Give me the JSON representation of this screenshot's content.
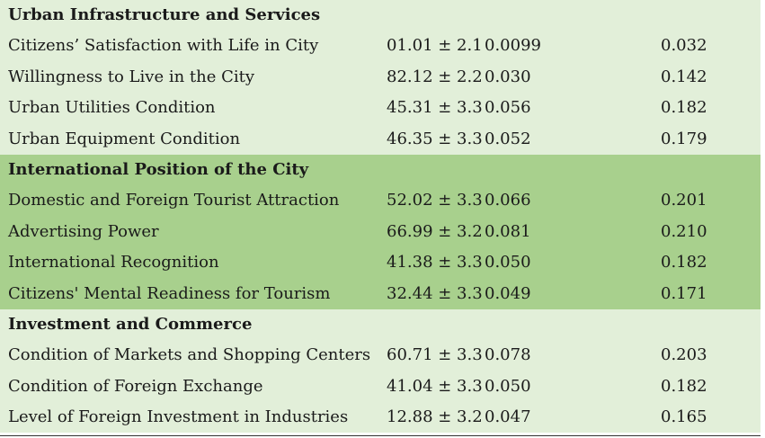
{
  "sections": [
    {
      "title": "Urban Infrastructure and Services",
      "rows": [
        {
          "label": "Citizens’ Satisfaction with Life in City",
          "mean": "01.01 ± 2.1",
          "w1": "0.0099",
          "w2": "0.032"
        },
        {
          "label": "Willingness to Live in the City",
          "mean": "82.12 ± 2.2",
          "w1": "0.030",
          "w2": "0.142"
        },
        {
          "label": "Urban Utilities Condition",
          "mean": "45.31 ± 3.3",
          "w1": "0.056",
          "w2": "0.182"
        },
        {
          "label": "Urban Equipment Condition",
          "mean": "46.35 ± 3.3",
          "w1": "0.052",
          "w2": "0.179"
        }
      ]
    },
    {
      "title": "International Position of the City",
      "rows": [
        {
          "label": "Domestic and Foreign Tourist Attraction",
          "mean": "52.02 ± 3.3",
          "w1": "0.066",
          "w2": "0.201"
        },
        {
          "label": "Advertising Power",
          "mean": "66.99 ± 3.2",
          "w1": "0.081",
          "w2": "0.210"
        },
        {
          "label": "International Recognition",
          "mean": "41.38 ± 3.3",
          "w1": "0.050",
          "w2": "0.182"
        },
        {
          "label": "Citizens' Mental Readiness for Tourism",
          "mean": "32.44 ± 3.3",
          "w1": "0.049",
          "w2": "0.171"
        }
      ]
    },
    {
      "title": "Investment and Commerce",
      "rows": [
        {
          "label": "Condition of Markets and Shopping Centers",
          "mean": "60.71 ± 3.3",
          "w1": "0.078",
          "w2": "0.203"
        },
        {
          "label": "Condition of Foreign Exchange",
          "mean": "41.04 ± 3.3",
          "w1": "0.050",
          "w2": "0.182"
        },
        {
          "label": "Level of Foreign Investment in Industries",
          "mean": "12.88 ± 3.2",
          "w1": "0.047",
          "w2": "0.165"
        }
      ]
    }
  ],
  "colors": {
    "light_band": "#e2efd9",
    "green_band": "#a8d08d"
  }
}
